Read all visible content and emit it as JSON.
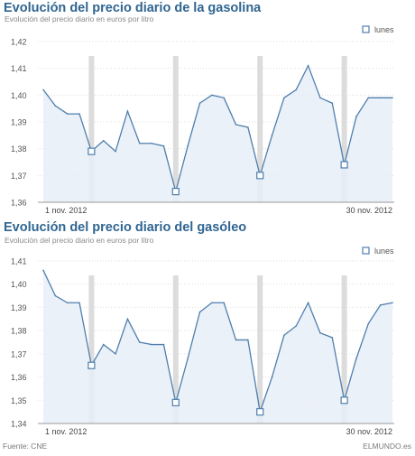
{
  "chart_data": [
    {
      "type": "area",
      "title": "Evolución del precio diario de la gasolina",
      "subtitle": "Evolución del precio diario en euros por litro",
      "legend": "lunes",
      "legend_position": "top-right",
      "x_start_label": "1 nov. 2012",
      "x_end_label": "30 nov. 2012",
      "ylim": [
        1.36,
        1.42
      ],
      "yticks": [
        "1,42",
        "1,41",
        "1,40",
        "1,39",
        "1,38",
        "1,37",
        "1,36"
      ],
      "grid": true,
      "mondays": [
        5,
        12,
        19,
        26
      ],
      "days": [
        1,
        2,
        3,
        4,
        5,
        6,
        7,
        8,
        9,
        10,
        11,
        12,
        13,
        14,
        15,
        16,
        17,
        18,
        19,
        20,
        21,
        22,
        23,
        24,
        25,
        26,
        27,
        28,
        29,
        30
      ],
      "values": [
        1.402,
        1.396,
        1.393,
        1.393,
        1.379,
        1.383,
        1.379,
        1.394,
        1.382,
        1.382,
        1.381,
        1.364,
        1.381,
        1.397,
        1.4,
        1.399,
        1.389,
        1.388,
        1.37,
        1.385,
        1.399,
        1.402,
        1.411,
        1.399,
        1.397,
        1.374,
        1.392,
        1.399,
        1.399,
        1.399
      ]
    },
    {
      "type": "area",
      "title": "Evolución del precio diario del gasóleo",
      "subtitle": "Evolución del precio diario en euros por litro",
      "legend": "lunes",
      "legend_position": "top-right",
      "x_start_label": "1 nov. 2012",
      "x_end_label": "30 nov. 2012",
      "ylim": [
        1.34,
        1.41
      ],
      "yticks": [
        "1,41",
        "1,40",
        "1,39",
        "1,38",
        "1,37",
        "1,36",
        "1,35",
        "1,34"
      ],
      "grid": true,
      "mondays": [
        5,
        12,
        19,
        26
      ],
      "days": [
        1,
        2,
        3,
        4,
        5,
        6,
        7,
        8,
        9,
        10,
        11,
        12,
        13,
        14,
        15,
        16,
        17,
        18,
        19,
        20,
        21,
        22,
        23,
        24,
        25,
        26,
        27,
        28,
        29,
        30
      ],
      "values": [
        1.406,
        1.395,
        1.392,
        1.392,
        1.365,
        1.374,
        1.37,
        1.385,
        1.375,
        1.374,
        1.374,
        1.349,
        1.368,
        1.388,
        1.392,
        1.392,
        1.376,
        1.376,
        1.345,
        1.36,
        1.378,
        1.382,
        1.392,
        1.379,
        1.377,
        1.35,
        1.368,
        1.383,
        1.391,
        1.392
      ]
    }
  ],
  "footer": {
    "source": "Fuente: CNE",
    "brand": "ELMUNDO.es"
  },
  "colors": {
    "title": "#2f6591",
    "line": "#4f7fae",
    "area": "#e8eff7",
    "monday_band": "#dcdcdc",
    "grid": "#dddddd",
    "axis": "#999999"
  }
}
